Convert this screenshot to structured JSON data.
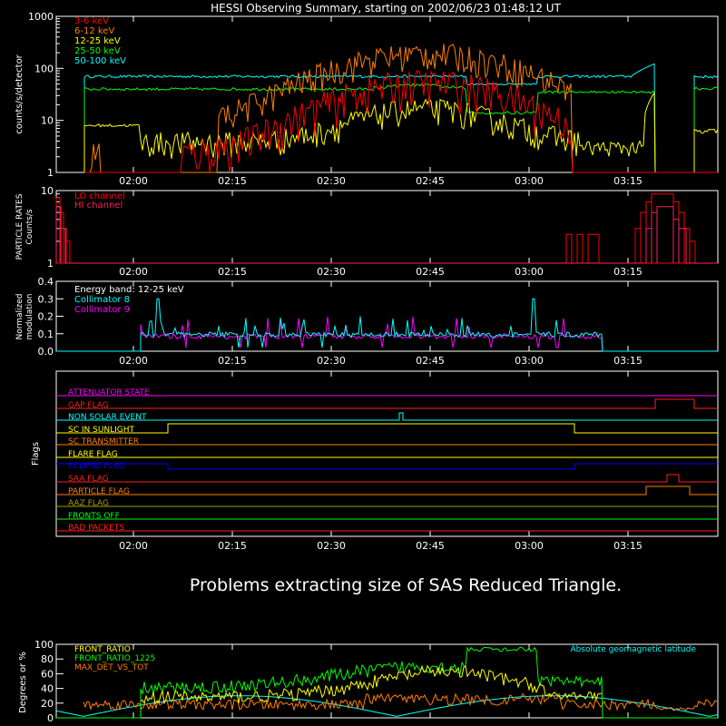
{
  "title": "HESSI Observing Summary, starting on 2002/06/23 01:48:12 UT",
  "time_ticks": [
    "02:00",
    "02:15",
    "02:30",
    "02:45",
    "03:00",
    "03:15"
  ],
  "message": "Problems extracting size of SAS Reduced Triangle.",
  "colors": {
    "bg": "#000000",
    "axis": "#ffffff",
    "red": "#ff0000",
    "orange": "#ff7f00",
    "yellow": "#ffff00",
    "green": "#00ff00",
    "cyan": "#00ffff",
    "magenta": "#ff00ff",
    "blue": "#0000ff",
    "crimson": "#ff2060",
    "olive": "#a0a000"
  },
  "chart_data": [
    {
      "id": "count-rates",
      "type": "line",
      "scale": "log",
      "ylabel": "counts/s/detector",
      "ylim": [
        1,
        1000
      ],
      "yticks": [
        "1",
        "10",
        "100",
        "1000"
      ],
      "series": [
        {
          "name": "3-6 keV",
          "color": "#ff0000"
        },
        {
          "name": "6-12 keV",
          "color": "#ff7f00"
        },
        {
          "name": "12-25 keV",
          "color": "#ffff00"
        },
        {
          "name": "25-50 keV",
          "color": "#00ff00"
        },
        {
          "name": "50-100 keV",
          "color": "#00ffff"
        }
      ]
    },
    {
      "id": "particle-rates",
      "type": "line",
      "scale": "log",
      "ylabel": "PARTICLE RATES",
      "ylabel2": "Counts/s",
      "ylim": [
        1,
        10
      ],
      "yticks": [
        "1",
        "10"
      ],
      "series": [
        {
          "name": "LO channel",
          "color": "#ff0000"
        },
        {
          "name": "HI channel",
          "color": "#ff2060"
        }
      ]
    },
    {
      "id": "modulation",
      "type": "line",
      "ylabel": "Normalized",
      "ylabel2": "modulation",
      "ylim": [
        0,
        0.4
      ],
      "yticks": [
        "0.0",
        "0.1",
        "0.2",
        "0.3",
        "0.4"
      ],
      "note": "Energy band: 12-25 keV",
      "series": [
        {
          "name": "Collimator 8",
          "color": "#00ffff"
        },
        {
          "name": "Collimator 9",
          "color": "#ff00ff"
        }
      ]
    },
    {
      "id": "flags",
      "type": "step",
      "ylabel": "Flags",
      "flags": [
        {
          "name": "ATTENUATOR STATE",
          "color": "#ff00ff"
        },
        {
          "name": "GAP FLAG",
          "color": "#ff2020"
        },
        {
          "name": "NON SOLAR EVENT",
          "color": "#00ffff"
        },
        {
          "name": "SC IN SUNLIGHT",
          "color": "#ffff00"
        },
        {
          "name": "SC TRANSMITTER",
          "color": "#ff7f00"
        },
        {
          "name": "FLARE FLAG",
          "color": "#ffff00"
        },
        {
          "name": "ECLIPSE FLAG",
          "color": "#0000ff"
        },
        {
          "name": "SAA FLAG",
          "color": "#ff2020"
        },
        {
          "name": "PARTICLE FLAG",
          "color": "#ff7f00"
        },
        {
          "name": "AAZ FLAG",
          "color": "#a0a000"
        },
        {
          "name": "FRONTS OFF",
          "color": "#00ff00"
        },
        {
          "name": "BAD PACKETS",
          "color": "#ff2020"
        }
      ]
    },
    {
      "id": "ratios",
      "type": "line",
      "ylabel": "Degrees or %",
      "ylim": [
        0,
        100
      ],
      "yticks": [
        "0",
        "20",
        "40",
        "60",
        "80",
        "100"
      ],
      "series": [
        {
          "name": "FRONT_RATIO",
          "color": "#ffff00"
        },
        {
          "name": "FRONT_RATIO_1225",
          "color": "#00ff00"
        },
        {
          "name": "MAX_DET_VS_TOT",
          "color": "#ff7f00"
        },
        {
          "name": "Absolute geomagnetic latitude",
          "color": "#00ffff"
        }
      ]
    }
  ]
}
